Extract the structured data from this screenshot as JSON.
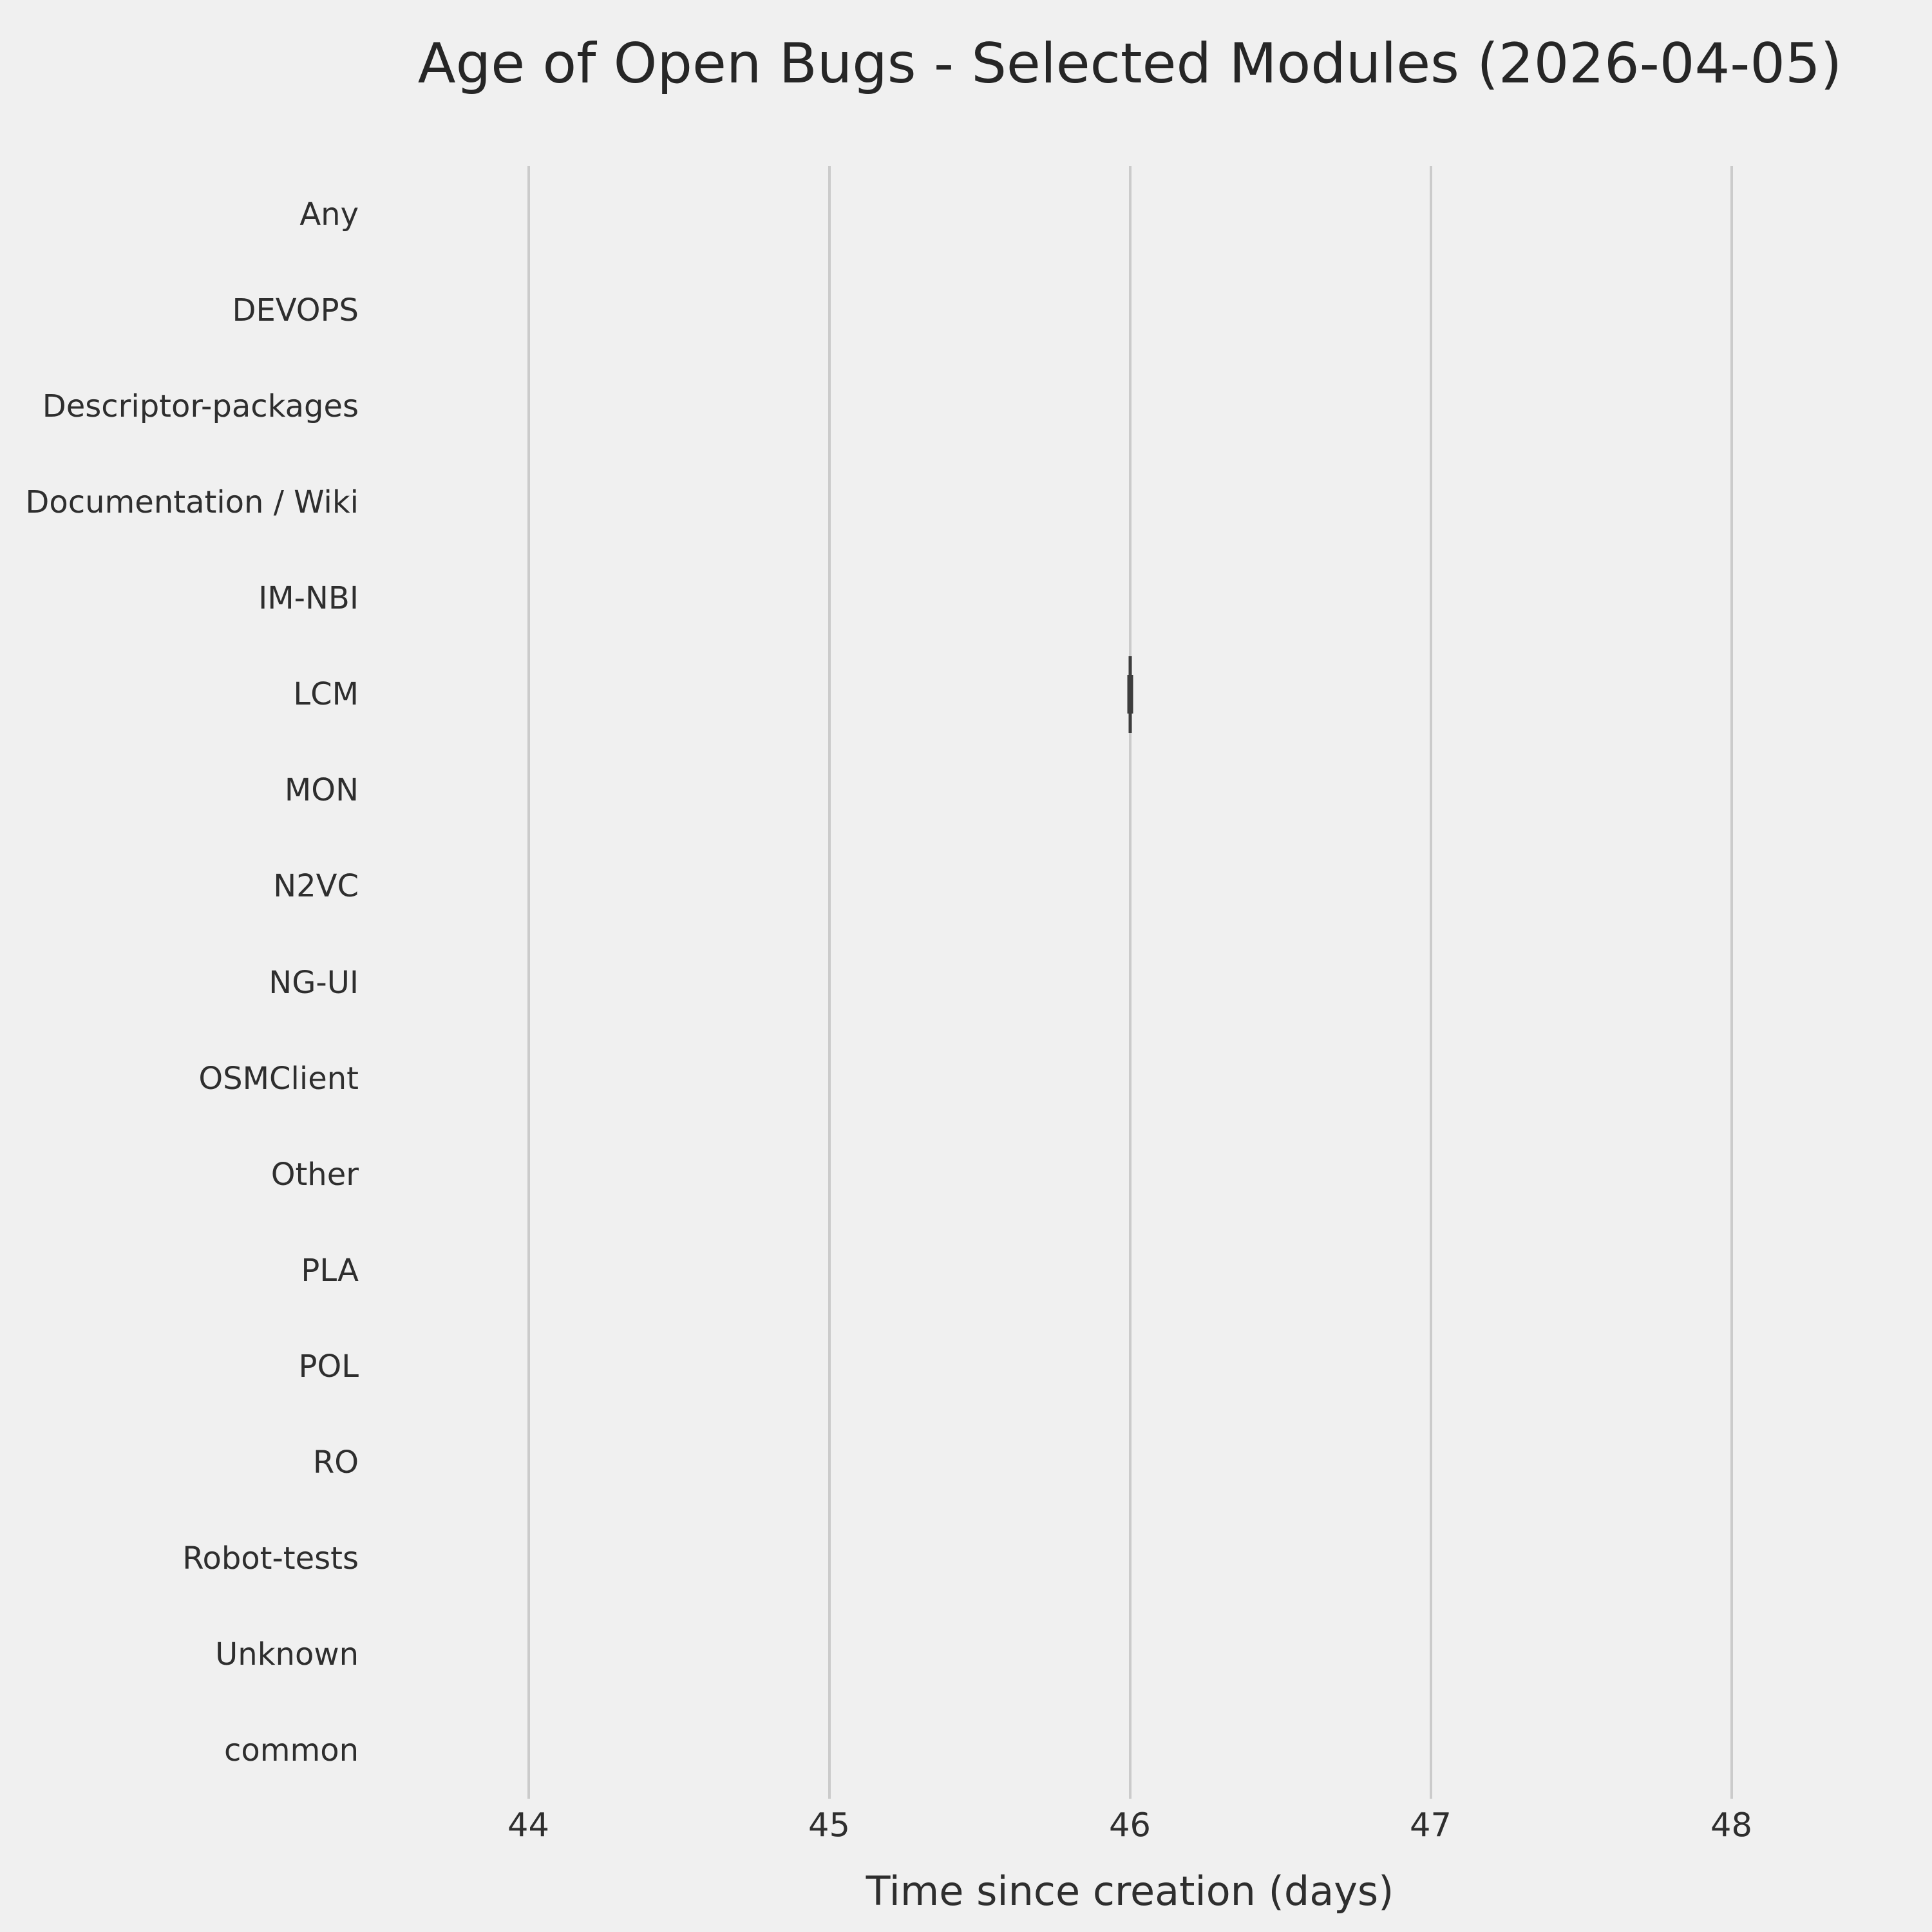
{
  "figure": {
    "background_color": "#f0f0f0",
    "grid_color": "#cbcbcb",
    "title_color": "#262626",
    "label_color": "#2e2e2e",
    "mark_color": "#3d3d3d"
  },
  "chart_data": {
    "type": "box",
    "orientation": "horizontal",
    "title": "Age of Open Bugs - Selected Modules (2026-04-05)",
    "xlabel": "Time since creation (days)",
    "ylabel": "",
    "categories": [
      "Any",
      "DEVOPS",
      "Descriptor-packages",
      "Documentation / Wiki",
      "IM-NBI",
      "LCM",
      "MON",
      "N2VC",
      "NG-UI",
      "OSMClient",
      "Other",
      "PLA",
      "POL",
      "RO",
      "Robot-tests",
      "Unknown",
      "common"
    ],
    "series": [
      {
        "name": "Any",
        "values": []
      },
      {
        "name": "DEVOPS",
        "values": []
      },
      {
        "name": "Descriptor-packages",
        "values": []
      },
      {
        "name": "Documentation / Wiki",
        "values": []
      },
      {
        "name": "IM-NBI",
        "values": []
      },
      {
        "name": "LCM",
        "values": [
          46
        ]
      },
      {
        "name": "MON",
        "values": []
      },
      {
        "name": "N2VC",
        "values": []
      },
      {
        "name": "NG-UI",
        "values": []
      },
      {
        "name": "OSMClient",
        "values": []
      },
      {
        "name": "Other",
        "values": []
      },
      {
        "name": "PLA",
        "values": []
      },
      {
        "name": "POL",
        "values": []
      },
      {
        "name": "RO",
        "values": []
      },
      {
        "name": "Robot-tests",
        "values": []
      },
      {
        "name": "Unknown",
        "values": []
      },
      {
        "name": "common",
        "values": []
      }
    ],
    "xlim": [
      43.5,
      48.5
    ],
    "xticks": [
      44,
      45,
      46,
      47,
      48
    ],
    "grid": "vertical-only",
    "legend": "none"
  }
}
